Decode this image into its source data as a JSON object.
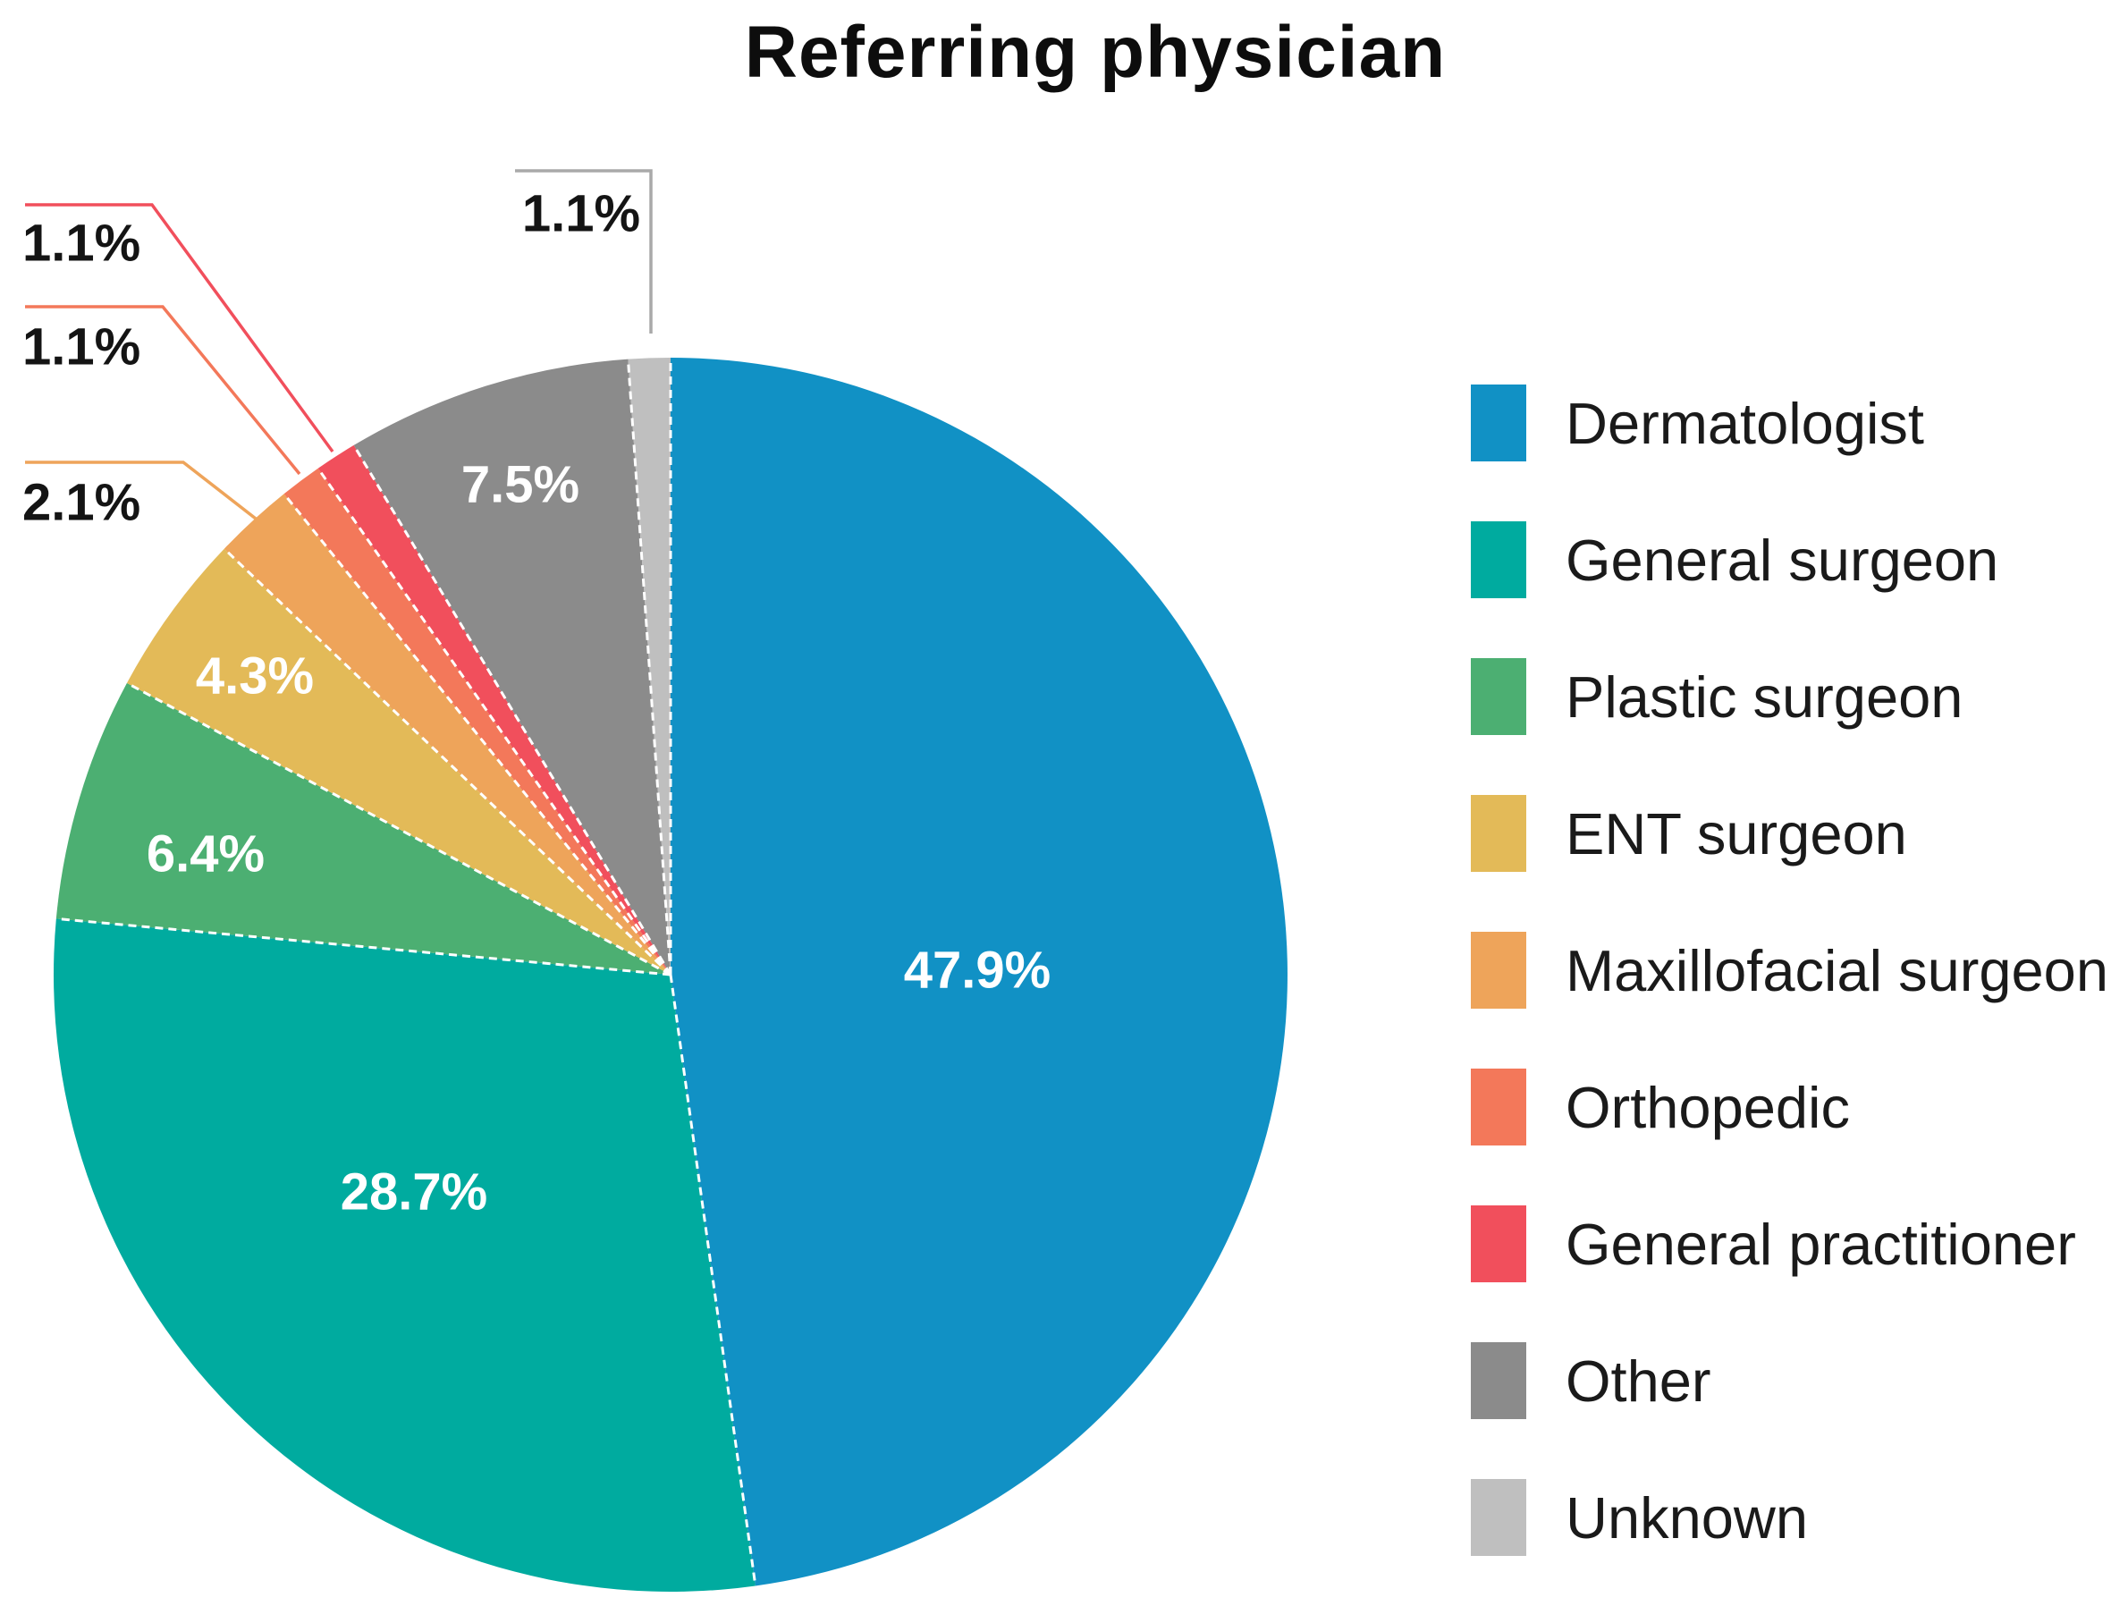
{
  "figure": {
    "background": "#ffffff"
  },
  "chart_data": {
    "type": "pie",
    "title": "Referring physician",
    "start_angle_deg": 0,
    "direction": "clockwise",
    "legend_position": "right",
    "separator_color": "#ffffff",
    "slices": [
      {
        "label": "Dermatologist",
        "value": 47.9,
        "display": "47.9%",
        "color": "#1191c5",
        "label_placement": "inside"
      },
      {
        "label": "General surgeon",
        "value": 28.7,
        "display": "28.7%",
        "color": "#00ab9f",
        "label_placement": "inside"
      },
      {
        "label": "Plastic surgeon",
        "value": 6.4,
        "display": "6.4%",
        "color": "#4caf72",
        "label_placement": "inside"
      },
      {
        "label": "ENT surgeon",
        "value": 4.3,
        "display": "4.3%",
        "color": "#e3ba58",
        "label_placement": "inside"
      },
      {
        "label": "Maxillofacial surgeon",
        "value": 2.1,
        "display": "2.1%",
        "color": "#eea45a",
        "label_placement": "callout"
      },
      {
        "label": "Orthopedic",
        "value": 1.1,
        "display": "1.1%",
        "color": "#f3785a",
        "label_placement": "callout"
      },
      {
        "label": "General practitioner",
        "value": 1.1,
        "display": "1.1%",
        "color": "#f14f5c",
        "label_placement": "callout"
      },
      {
        "label": "Other",
        "value": 7.5,
        "display": "7.5%",
        "color": "#8b8b8b",
        "label_placement": "inside"
      },
      {
        "label": "Unknown",
        "value": 1.1,
        "display": "1.1%",
        "color": "#bfbfbf",
        "label_placement": "callout"
      }
    ]
  }
}
